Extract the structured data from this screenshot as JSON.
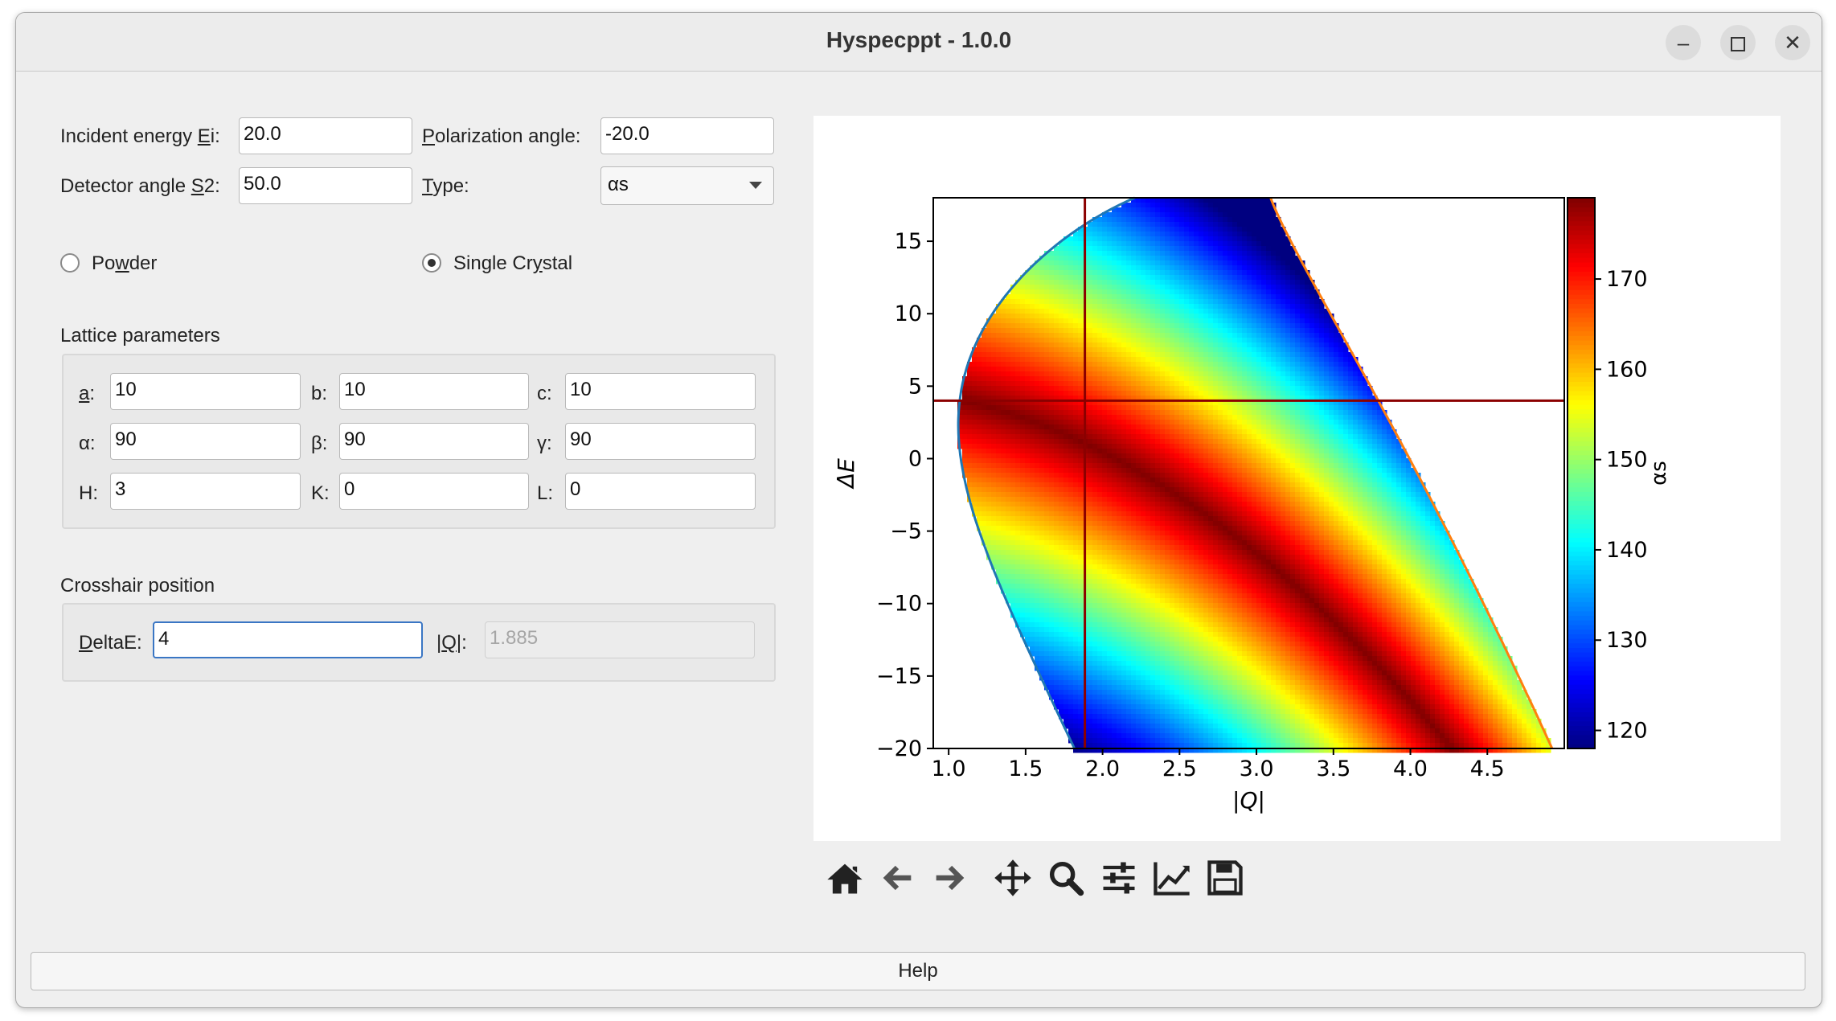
{
  "window": {
    "title": "Hyspecppt - 1.0.0"
  },
  "form": {
    "ei_label": "Incident energy Ei:",
    "ei_value": "20.0",
    "pol_label": "Polarization angle:",
    "pol_value": "-20.0",
    "s2_label": "Detector angle S2:",
    "s2_value": "50.0",
    "type_label": "Type:",
    "type_value": "αs",
    "powder_label": "Powder",
    "single_crystal_label": "Single Crystal",
    "selected_mode": "Single Crystal"
  },
  "lattice": {
    "title": "Lattice parameters",
    "a_label": "a:",
    "a": "10",
    "b_label": "b:",
    "b": "10",
    "c_label": "c:",
    "c": "10",
    "alpha_label": "α:",
    "alpha": "90",
    "beta_label": "β:",
    "beta": "90",
    "gamma_label": "γ:",
    "gamma": "90",
    "h_label": "H:",
    "h": "3",
    "k_label": "K:",
    "k": "0",
    "l_label": "L:",
    "l": "0"
  },
  "crosshair": {
    "title": "Crosshair position",
    "deltae_label": "DeltaE:",
    "deltae_value": "4",
    "q_label": "|Q|:",
    "q_value": "1.885"
  },
  "toolbar": [
    "home-icon",
    "back-arrow-icon",
    "forward-arrow-icon",
    "pan-icon",
    "zoom-icon",
    "configure-subplots-icon",
    "edit-axes-icon",
    "save-icon"
  ],
  "help_label": "Help",
  "chart_data": {
    "type": "heatmap",
    "xlabel": "|Q|",
    "ylabel": "ΔE",
    "xlim": [
      0.9,
      5.0
    ],
    "ylim": [
      -20,
      18
    ],
    "xticks": [
      "1.0",
      "1.5",
      "2.0",
      "2.5",
      "3.0",
      "3.5",
      "4.0",
      "4.5"
    ],
    "yticks": [
      "15",
      "10",
      "5",
      "0",
      "−5",
      "−10",
      "−15",
      "−20"
    ],
    "colorbar": {
      "label": "αs",
      "min": 118,
      "max": 179,
      "ticks": [
        "170",
        "160",
        "150",
        "140",
        "130",
        "120"
      ],
      "colormap": "jet"
    },
    "crosshair": {
      "q": 1.885,
      "deltae": 4
    },
    "ei": 20.0,
    "s2": 50.0
  }
}
